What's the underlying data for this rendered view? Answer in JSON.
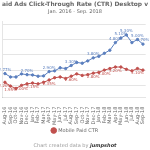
{
  "chart_data": {
    "type": "line",
    "title": "aid Ads Click-Through Rate (CTR) Desktop v",
    "subtitle": "Jan. 2016 - Sep. 2018",
    "categories": [
      "Aug-16",
      "Sep-16",
      "Oct-16",
      "Nov-16",
      "Dec-16",
      "Jan-17",
      "Feb-17",
      "Mar-17",
      "Apr-17",
      "May-17",
      "Jun-17",
      "Jul-17",
      "Aug-17",
      "Sep-17",
      "Oct-17",
      "Nov-17",
      "Dec-17",
      "Jan-18",
      "Feb-18",
      "Mar-18",
      "Apr-18",
      "May-18",
      "Jun-18",
      "Jul-18",
      "Aug-18",
      "Sep-18"
    ],
    "series": [
      {
        "color": "#5B7FBE",
        "values": [
          2.77,
          2.55,
          2.55,
          2.75,
          2.7,
          2.68,
          2.6,
          2.62,
          2.9,
          2.95,
          3.15,
          3.1,
          3.3,
          3.5,
          3.45,
          3.6,
          3.8,
          3.9,
          4.1,
          4.3,
          4.8,
          5.1,
          5.3,
          4.8,
          5.0,
          4.7
        ],
        "value_labels": [
          "2.77%",
          null,
          null,
          null,
          "2.70%",
          null,
          null,
          null,
          "2.90%",
          null,
          null,
          null,
          "3.30%",
          null,
          null,
          null,
          "3.80%",
          null,
          null,
          null,
          "4.80%",
          "5.10%",
          "5.30%",
          null,
          "5.00%",
          "4.70%"
        ]
      },
      {
        "name": "Mobile Paid CTR",
        "color": "#C0504D",
        "values": [
          2.2,
          1.95,
          1.8,
          2.0,
          2.1,
          2.15,
          2.1,
          2.2,
          2.35,
          2.5,
          2.55,
          2.45,
          2.6,
          2.75,
          2.65,
          2.7,
          2.8,
          2.85,
          3.0,
          3.1,
          3.2,
          3.2,
          3.05,
          2.95,
          3.1,
          3.0
        ],
        "value_labels": [
          "2.20%",
          "1.95%",
          null,
          "2.00%",
          null,
          "2.15%",
          null,
          null,
          "2.35%",
          null,
          null,
          null,
          "2.60%",
          null,
          null,
          null,
          "2.80%",
          null,
          "3.00%",
          null,
          "3.20%",
          null,
          null,
          null,
          "3.10%",
          null
        ]
      }
    ],
    "ylim": [
      1.2,
      6.2
    ],
    "yticks": [
      2,
      3,
      4,
      5,
      6
    ],
    "grid": true,
    "legend": "bottom",
    "data_labels": true,
    "tick_labels": "x",
    "marker": "circle",
    "annotations": [
      "Chart created data by ",
      "jumpshot"
    ]
  }
}
